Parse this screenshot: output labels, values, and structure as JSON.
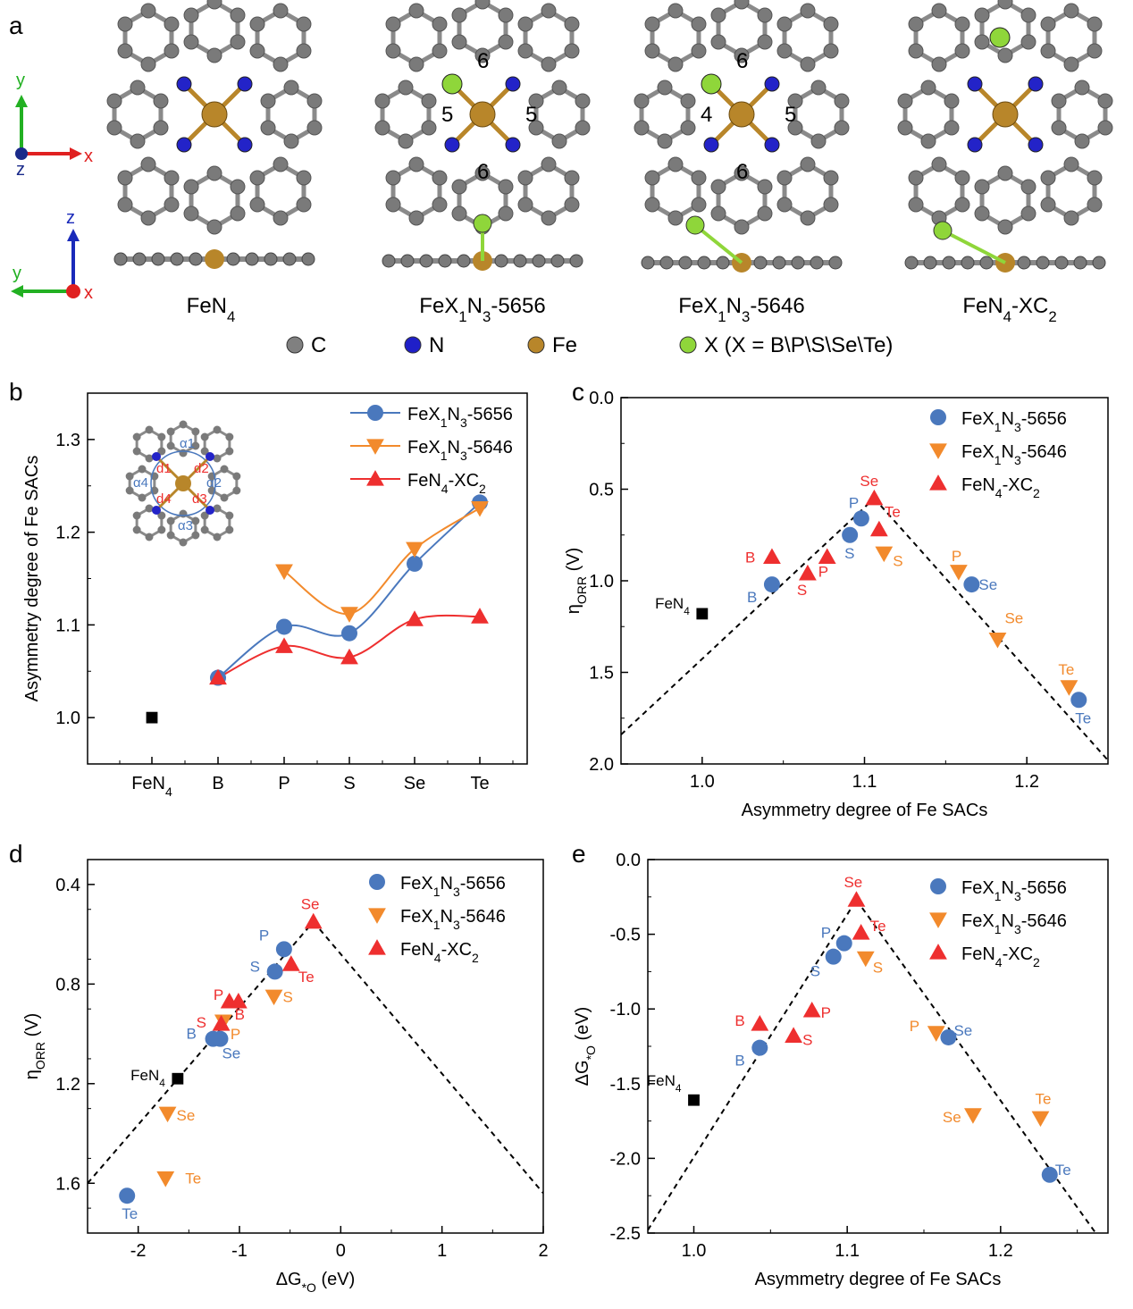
{
  "panel_a": {
    "letter": "a",
    "structures": [
      {
        "name": "FeN4",
        "label_main": "FeN",
        "label_sub": "4",
        "label_tail": ""
      },
      {
        "name": "FeX1N3-5656",
        "label_main": "FeX",
        "label_sub": "1",
        "label_mid": "N",
        "label_sub2": "3",
        "label_tail": "-5656",
        "ring_labels": [
          "6",
          "5",
          "5",
          "6"
        ]
      },
      {
        "name": "FeX1N3-5646",
        "label_main": "FeX",
        "label_sub": "1",
        "label_mid": "N",
        "label_sub2": "3",
        "label_tail": "-5646",
        "ring_labels": [
          "6",
          "4",
          "5",
          "6"
        ]
      },
      {
        "name": "FeN4-XC2",
        "label_main": "FeN",
        "label_sub": "4",
        "label_mid": "-XC",
        "label_sub2": "2",
        "label_tail": ""
      }
    ],
    "axes_top": {
      "y": "y",
      "x": "x",
      "z": "z"
    },
    "axes_bottom": {
      "z": "z",
      "y": "y",
      "x": "x"
    },
    "atom_legend": [
      {
        "symbol": "C",
        "color": "#808080"
      },
      {
        "symbol": "N",
        "color": "#1f1fc8"
      },
      {
        "symbol": "Fe",
        "color": "#b8862a"
      },
      {
        "symbol": "X (X = B\\P\\S\\Se\\Te)",
        "color": "#8fd63a"
      }
    ]
  },
  "colors": {
    "s5656": "#4a78bd",
    "s5646": "#f28a2c",
    "sXC2": "#ee2f2f",
    "ref": "#000000",
    "inset_circle": "#4a78bd",
    "inset_d": "#ee2f2f"
  },
  "chart_data": [
    {
      "id": "b",
      "type": "line",
      "letter": "b",
      "xlabel": "",
      "ylabel": "Asymmetry degree of Fe SACs",
      "categories": [
        "FeN4",
        "B",
        "P",
        "S",
        "Se",
        "Te"
      ],
      "category_labels": [
        {
          "main": "FeN",
          "sub": "4"
        },
        {
          "main": "B"
        },
        {
          "main": "P"
        },
        {
          "main": "S"
        },
        {
          "main": "Se"
        },
        {
          "main": "Te"
        }
      ],
      "ylim": [
        0.95,
        1.35
      ],
      "yticks": [
        1.0,
        1.1,
        1.2,
        1.3
      ],
      "ytick_labels": [
        "1.0",
        "1.1",
        "1.2",
        "1.3"
      ],
      "reference": {
        "name": "FeN4",
        "category": "FeN4",
        "value": 1.0
      },
      "series": [
        {
          "name": "FeX1N3-5656",
          "marker": "circle",
          "color_key": "s5656",
          "values": [
            null,
            1.043,
            1.098,
            1.091,
            1.166,
            1.232
          ]
        },
        {
          "name": "FeX1N3-5646",
          "marker": "triangle-down",
          "color_key": "s5646",
          "values": [
            null,
            null,
            1.158,
            1.112,
            1.182,
            1.226
          ]
        },
        {
          "name": "FeN4-XC2",
          "marker": "triangle-up",
          "color_key": "sXC2",
          "values": [
            null,
            1.043,
            1.077,
            1.065,
            1.106,
            1.109
          ]
        }
      ],
      "legend": [
        {
          "main": "FeX",
          "sub": "1",
          "mid": "N",
          "sub2": "3",
          "tail": "-5656"
        },
        {
          "main": "FeX",
          "sub": "1",
          "mid": "N",
          "sub2": "3",
          "tail": "-5646"
        },
        {
          "main": "FeN",
          "sub": "4",
          "mid": "-XC",
          "sub2": "2",
          "tail": ""
        }
      ],
      "legend_position": "top-right",
      "inset": {
        "alpha_labels": [
          "α1",
          "α2",
          "α3",
          "α4"
        ],
        "d_labels": [
          "d1",
          "d2",
          "d3",
          "d4"
        ]
      }
    },
    {
      "id": "c",
      "type": "scatter",
      "letter": "c",
      "xlabel": "Asymmetry degree of Fe SACs",
      "ylabel": "ηORR (V)",
      "ylabel_main": "η",
      "ylabel_sub": "ORR",
      "ylabel_tail": " (V)",
      "xlim": [
        0.95,
        1.25
      ],
      "ylim": [
        2.0,
        0.0
      ],
      "y_inverted": true,
      "xticks": [
        1.0,
        1.1,
        1.2
      ],
      "xtick_labels": [
        "1.0",
        "1.1",
        "1.2"
      ],
      "yticks": [
        0.0,
        0.5,
        1.0,
        1.5,
        2.0
      ],
      "ytick_labels": [
        "0.0",
        "0.5",
        "1.0",
        "1.5",
        "2.0"
      ],
      "reference": {
        "name": "FeN4",
        "x": 1.0,
        "y": 1.18,
        "label_main": "FeN",
        "label_sub": "4"
      },
      "series": [
        {
          "name": "FeX1N3-5656",
          "marker": "circle",
          "color_key": "s5656",
          "points": [
            {
              "label": "B",
              "x": 1.043,
              "y": 1.02
            },
            {
              "label": "P",
              "x": 1.098,
              "y": 0.66
            },
            {
              "label": "S",
              "x": 1.091,
              "y": 0.75
            },
            {
              "label": "Se",
              "x": 1.166,
              "y": 1.02
            },
            {
              "label": "Te",
              "x": 1.232,
              "y": 1.65
            }
          ]
        },
        {
          "name": "FeX1N3-5646",
          "marker": "triangle-down",
          "color_key": "s5646",
          "points": [
            {
              "label": "P",
              "x": 1.158,
              "y": 0.95
            },
            {
              "label": "S",
              "x": 1.112,
              "y": 0.85
            },
            {
              "label": "Se",
              "x": 1.182,
              "y": 1.32
            },
            {
              "label": "Te",
              "x": 1.226,
              "y": 1.58
            }
          ]
        },
        {
          "name": "FeN4-XC2",
          "marker": "triangle-up",
          "color_key": "sXC2",
          "points": [
            {
              "label": "B",
              "x": 1.043,
              "y": 0.87
            },
            {
              "label": "P",
              "x": 1.077,
              "y": 0.87
            },
            {
              "label": "S",
              "x": 1.065,
              "y": 0.96
            },
            {
              "label": "Se",
              "x": 1.106,
              "y": 0.55
            },
            {
              "label": "Te",
              "x": 1.109,
              "y": 0.72
            }
          ]
        }
      ],
      "trend_lines": [
        {
          "x": [
            0.95,
            1.106
          ],
          "y": [
            1.84,
            0.55
          ]
        },
        {
          "x": [
            1.106,
            1.25
          ],
          "y": [
            0.55,
            1.98
          ]
        }
      ],
      "legend": [
        {
          "main": "FeX",
          "sub": "1",
          "mid": "N",
          "sub2": "3",
          "tail": "-5656"
        },
        {
          "main": "FeX",
          "sub": "1",
          "mid": "N",
          "sub2": "3",
          "tail": "-5646"
        },
        {
          "main": "FeN",
          "sub": "4",
          "mid": "-XC",
          "sub2": "2",
          "tail": ""
        }
      ],
      "legend_position": "top-right"
    },
    {
      "id": "d",
      "type": "scatter",
      "letter": "d",
      "xlabel": "ΔG*O (eV)",
      "xlabel_main": "ΔG",
      "xlabel_sub": "*O",
      "xlabel_tail": " (eV)",
      "ylabel": "ηORR (V)",
      "ylabel_main": "η",
      "ylabel_sub": "ORR",
      "ylabel_tail": " (V)",
      "xlim": [
        -2.5,
        2.0
      ],
      "ylim": [
        1.8,
        0.3
      ],
      "y_inverted": true,
      "xticks": [
        -2,
        -1,
        0,
        1,
        2
      ],
      "xtick_labels": [
        "-2",
        "-1",
        "0",
        "1",
        "2"
      ],
      "yticks": [
        0.4,
        0.8,
        1.2,
        1.6
      ],
      "ytick_labels": [
        "0.4",
        "0.8",
        "1.2",
        "1.6"
      ],
      "reference": {
        "name": "FeN4",
        "x": -1.61,
        "y": 1.18,
        "label_main": "FeN",
        "label_sub": "4"
      },
      "series": [
        {
          "name": "FeX1N3-5656",
          "marker": "circle",
          "color_key": "s5656",
          "points": [
            {
              "label": "B",
              "x": -1.26,
              "y": 1.02
            },
            {
              "label": "P",
              "x": -0.56,
              "y": 0.66
            },
            {
              "label": "S",
              "x": -0.65,
              "y": 0.75
            },
            {
              "label": "Se",
              "x": -1.19,
              "y": 1.02
            },
            {
              "label": "Te",
              "x": -2.11,
              "y": 1.65
            }
          ]
        },
        {
          "name": "FeX1N3-5646",
          "marker": "triangle-down",
          "color_key": "s5646",
          "points": [
            {
              "label": "P",
              "x": -1.16,
              "y": 0.95
            },
            {
              "label": "S",
              "x": -0.66,
              "y": 0.85
            },
            {
              "label": "Se",
              "x": -1.71,
              "y": 1.32
            },
            {
              "label": "Te",
              "x": -1.73,
              "y": 1.58
            }
          ]
        },
        {
          "name": "FeN4-XC2",
          "marker": "triangle-up",
          "color_key": "sXC2",
          "points": [
            {
              "label": "B",
              "x": -1.1,
              "y": 0.87
            },
            {
              "label": "P",
              "x": -1.01,
              "y": 0.87
            },
            {
              "label": "S",
              "x": -1.18,
              "y": 0.96
            },
            {
              "label": "Se",
              "x": -0.27,
              "y": 0.55
            },
            {
              "label": "Te",
              "x": -0.49,
              "y": 0.72
            }
          ]
        }
      ],
      "trend_lines": [
        {
          "x": [
            -2.5,
            -0.27
          ],
          "y": [
            1.6,
            0.55
          ]
        },
        {
          "x": [
            -0.27,
            2.0
          ],
          "y": [
            0.55,
            1.64
          ]
        }
      ],
      "legend": [
        {
          "main": "FeX",
          "sub": "1",
          "mid": "N",
          "sub2": "3",
          "tail": "-5656"
        },
        {
          "main": "FeX",
          "sub": "1",
          "mid": "N",
          "sub2": "3",
          "tail": "-5646"
        },
        {
          "main": "FeN",
          "sub": "4",
          "mid": "-XC",
          "sub2": "2",
          "tail": ""
        }
      ],
      "legend_position": "top-right"
    },
    {
      "id": "e",
      "type": "scatter",
      "letter": "e",
      "xlabel": "Asymmetry degree of Fe SACs",
      "ylabel": "ΔG*O (eV)",
      "ylabel_main": "ΔG",
      "ylabel_sub": "*O",
      "ylabel_tail": " (eV)",
      "xlim": [
        0.97,
        1.27
      ],
      "ylim": [
        -2.5,
        0.0
      ],
      "xticks": [
        1.0,
        1.1,
        1.2
      ],
      "xtick_labels": [
        "1.0",
        "1.1",
        "1.2"
      ],
      "yticks": [
        0.0,
        -0.5,
        -1.0,
        -1.5,
        -2.0,
        -2.5
      ],
      "ytick_labels": [
        "0.0",
        "-0.5",
        "-1.0",
        "-1.5",
        "-2.0",
        "-2.5"
      ],
      "reference": {
        "name": "FeN4",
        "x": 1.0,
        "y": -1.61,
        "label_main": "FeN",
        "label_sub": "4"
      },
      "series": [
        {
          "name": "FeX1N3-5656",
          "marker": "circle",
          "color_key": "s5656",
          "points": [
            {
              "label": "B",
              "x": 1.043,
              "y": -1.26
            },
            {
              "label": "P",
              "x": 1.098,
              "y": -0.56
            },
            {
              "label": "S",
              "x": 1.091,
              "y": -0.65
            },
            {
              "label": "Se",
              "x": 1.166,
              "y": -1.19
            },
            {
              "label": "Te",
              "x": 1.232,
              "y": -2.11
            }
          ]
        },
        {
          "name": "FeX1N3-5646",
          "marker": "triangle-down",
          "color_key": "s5646",
          "points": [
            {
              "label": "P",
              "x": 1.158,
              "y": -1.16
            },
            {
              "label": "S",
              "x": 1.112,
              "y": -0.66
            },
            {
              "label": "Se",
              "x": 1.182,
              "y": -1.71
            },
            {
              "label": "Te",
              "x": 1.226,
              "y": -1.73
            }
          ]
        },
        {
          "name": "FeN4-XC2",
          "marker": "triangle-up",
          "color_key": "sXC2",
          "points": [
            {
              "label": "B",
              "x": 1.043,
              "y": -1.1
            },
            {
              "label": "P",
              "x": 1.077,
              "y": -1.01
            },
            {
              "label": "S",
              "x": 1.065,
              "y": -1.18
            },
            {
              "label": "Se",
              "x": 1.106,
              "y": -0.27
            },
            {
              "label": "Te",
              "x": 1.109,
              "y": -0.49
            }
          ]
        }
      ],
      "trend_lines": [
        {
          "x": [
            0.97,
            1.106
          ],
          "y": [
            -2.48,
            -0.27
          ]
        },
        {
          "x": [
            1.106,
            1.262
          ],
          "y": [
            -0.27,
            -2.5
          ]
        }
      ],
      "legend": [
        {
          "main": "FeX",
          "sub": "1",
          "mid": "N",
          "sub2": "3",
          "tail": "-5656"
        },
        {
          "main": "FeX",
          "sub": "1",
          "mid": "N",
          "sub2": "3",
          "tail": "-5646"
        },
        {
          "main": "FeN",
          "sub": "4",
          "mid": "-XC",
          "sub2": "2",
          "tail": ""
        }
      ],
      "legend_position": "top-right"
    }
  ]
}
